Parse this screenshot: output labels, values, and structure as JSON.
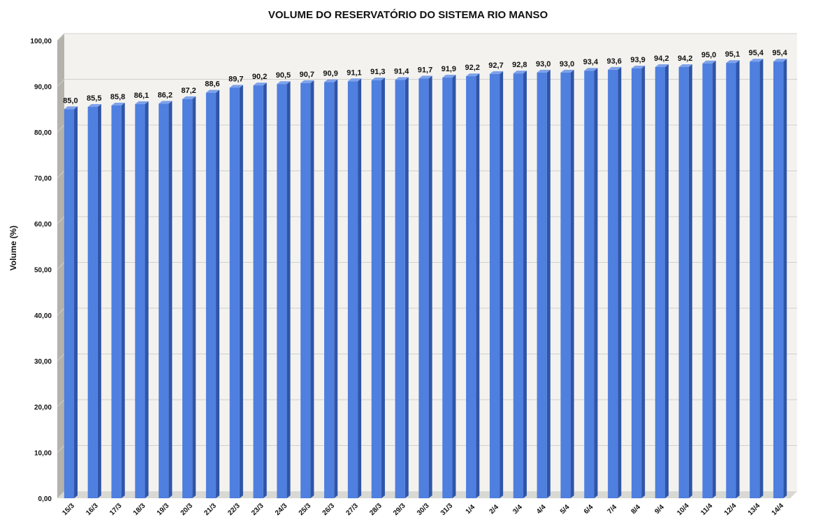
{
  "chart_data": {
    "type": "bar",
    "title": "VOLUME DO RESERVATÓRIO DO SISTEMA RIO MANSO",
    "xlabel": "",
    "ylabel": "Volume (%)",
    "ylim": [
      0,
      100
    ],
    "yticks": [
      "0,00",
      "10,00",
      "20,00",
      "30,00",
      "40,00",
      "50,00",
      "60,00",
      "70,00",
      "80,00",
      "90,00",
      "100,00"
    ],
    "grid": true,
    "style": "3d-column",
    "colors": {
      "bar_face": "#4f7fdf",
      "bar_side": "#2f55a8",
      "bar_top": "#7ea2ea",
      "wall": "#f3f2ee",
      "wall_side": "#b3b3ab",
      "floor": "#d9d9d4",
      "grid": "#d0d0cc"
    },
    "categories": [
      "15/3",
      "16/3",
      "17/3",
      "18/3",
      "19/3",
      "20/3",
      "21/3",
      "22/3",
      "23/3",
      "24/3",
      "25/3",
      "26/3",
      "27/3",
      "28/3",
      "29/3",
      "30/3",
      "31/3",
      "1/4",
      "2/4",
      "3/4",
      "4/4",
      "5/4",
      "6/4",
      "7/4",
      "8/4",
      "9/4",
      "10/4",
      "11/4",
      "12/4",
      "13/4",
      "14/4"
    ],
    "values": [
      85.0,
      85.5,
      85.8,
      86.1,
      86.2,
      87.2,
      88.6,
      89.7,
      90.2,
      90.5,
      90.7,
      90.9,
      91.1,
      91.3,
      91.4,
      91.7,
      91.9,
      92.2,
      92.7,
      92.8,
      93.0,
      93.0,
      93.4,
      93.6,
      93.9,
      94.2,
      94.2,
      95.0,
      95.1,
      95.4,
      95.4
    ],
    "data_labels": [
      "85,0",
      "85,5",
      "85,8",
      "86,1",
      "86,2",
      "87,2",
      "88,6",
      "89,7",
      "90,2",
      "90,5",
      "90,7",
      "90,9",
      "91,1",
      "91,3",
      "91,4",
      "91,7",
      "91,9",
      "92,2",
      "92,7",
      "92,8",
      "93,0",
      "93,0",
      "93,4",
      "93,6",
      "93,9",
      "94,2",
      "94,2",
      "95,0",
      "95,1",
      "95,4",
      "95,4"
    ]
  }
}
